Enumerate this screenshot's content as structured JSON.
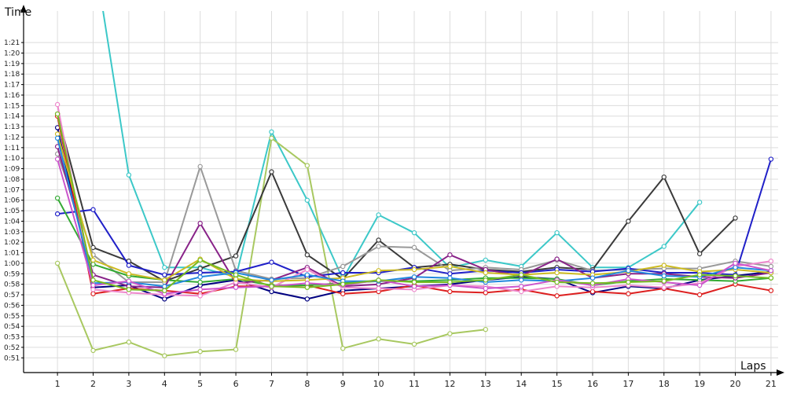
{
  "chart_data": {
    "type": "line",
    "title": "",
    "xlabel": "Laps",
    "ylabel": "Time",
    "grid": true,
    "x": [
      1,
      2,
      3,
      4,
      5,
      6,
      7,
      8,
      9,
      10,
      11,
      12,
      13,
      14,
      15,
      16,
      17,
      18,
      19,
      20,
      21
    ],
    "xlim": [
      0.05,
      21.2
    ],
    "ylim": [
      49.6,
      84
    ],
    "y_ticks": [
      51,
      52,
      53,
      54,
      55,
      56,
      57,
      58,
      59,
      60,
      61,
      62,
      63,
      64,
      65,
      66,
      67,
      68,
      69,
      70,
      71,
      72,
      73,
      74,
      75,
      76,
      77,
      78,
      79,
      80,
      81
    ],
    "y_tick_labels": [
      "0:51",
      "0:52",
      "0:53",
      "0:54",
      "0:55",
      "0:56",
      "0:57",
      "0:58",
      "0:59",
      "1:00",
      "1:01",
      "1:02",
      "1:03",
      "1:04",
      "1:05",
      "1:06",
      "1:07",
      "1:08",
      "1:09",
      "1:10",
      "1:11",
      "1:12",
      "1:13",
      "1:14",
      "1:15",
      "1:16",
      "1:17",
      "1:18",
      "1:19",
      "1:20",
      "1:21"
    ],
    "x_tick_labels": [
      "1",
      "2",
      "3",
      "4",
      "5",
      "6",
      "7",
      "8",
      "9",
      "10",
      "11",
      "12",
      "13",
      "14",
      "15",
      "16",
      "17",
      "18",
      "19",
      "20",
      "21"
    ],
    "series": [
      {
        "color": "#3cc8c8",
        "values": [
          null,
          90,
          68.4,
          59.6,
          59.6,
          58.7,
          72.5,
          66,
          58.5,
          64.6,
          62.9,
          59.6,
          60.3,
          59.7,
          62.9,
          59.6,
          59.6,
          61.6,
          65.8,
          null,
          null
        ]
      },
      {
        "color": "#a8c860",
        "values": [
          60,
          51.7,
          52.5,
          51.2,
          51.6,
          51.8,
          71.9,
          69.3,
          51.9,
          52.8,
          52.3,
          53.3,
          53.7,
          null,
          null,
          null,
          null,
          null,
          null,
          null,
          null
        ]
      },
      {
        "color": "#3a3a3a",
        "values": [
          74.2,
          61.5,
          60.2,
          58.3,
          59.5,
          60.7,
          68.7,
          60.8,
          58.5,
          62.2,
          59.6,
          59.9,
          59.4,
          59.2,
          59.6,
          59.4,
          64,
          68.2,
          60.9,
          64.3,
          null
        ]
      },
      {
        "color": "#999999",
        "values": [
          70.4,
          60.8,
          58.2,
          58.2,
          69.2,
          59.3,
          58.5,
          58.6,
          59.7,
          61.6,
          61.5,
          59.3,
          59.6,
          59.4,
          60.3,
          59.3,
          59.4,
          59.5,
          59.5,
          60.2,
          59.7
        ]
      },
      {
        "color": "#2020c8",
        "values": [
          64.7,
          65.1,
          59.8,
          58.9,
          59.1,
          59.2,
          60.1,
          58.7,
          59.1,
          59.1,
          59.6,
          59.0,
          59.3,
          59.1,
          59.4,
          59.2,
          59.5,
          59.1,
          59.1,
          58.9,
          69.9
        ]
      },
      {
        "color": "#000080",
        "values": [
          72.9,
          57.7,
          57.9,
          56.6,
          57.9,
          58.4,
          57.3,
          56.6,
          57.4,
          57.6,
          57.8,
          58,
          58.4,
          58.7,
          58.5,
          57.2,
          57.8,
          57.6,
          58.4,
          58.8,
          59.2
        ]
      },
      {
        "color": "#dd2020",
        "values": [
          74,
          57.1,
          57.6,
          57.4,
          57.1,
          57.8,
          57.8,
          57.9,
          57.1,
          57.3,
          57.9,
          57.3,
          57.2,
          57.5,
          56.9,
          57.3,
          57.1,
          57.6,
          57,
          58,
          57.4
        ]
      },
      {
        "color": "#33aa33",
        "values": [
          66.2,
          59.9,
          58.8,
          58.4,
          58.2,
          58.5,
          57.9,
          57.9,
          58.1,
          58.3,
          58.3,
          58.4,
          58.6,
          58.6,
          58.5,
          57.9,
          58.3,
          58.5,
          58.4,
          58.3,
          58.6
        ]
      },
      {
        "color": "#882288",
        "values": [
          71.1,
          58.9,
          57.8,
          57.7,
          63.8,
          58.1,
          58.4,
          59.6,
          57.8,
          58,
          58.6,
          60.8,
          59.4,
          58.8,
          60.4,
          58.6,
          59,
          59,
          58.7,
          58.6,
          59.1
        ]
      },
      {
        "color": "#ee88cc",
        "values": [
          75.1,
          57.5,
          57.2,
          57,
          56.9,
          58.2,
          57.7,
          59.4,
          57.7,
          57.6,
          57.5,
          57.9,
          57.8,
          57.3,
          57.8,
          57.7,
          57.9,
          57.7,
          58.1,
          59.7,
          60.2
        ]
      },
      {
        "color": "#ccbb22",
        "values": [
          72.3,
          60.3,
          59,
          58.4,
          60.4,
          58.5,
          58.3,
          58.4,
          58.6,
          59.3,
          59.4,
          59.7,
          59.1,
          58.9,
          59.1,
          58.9,
          59.2,
          59.8,
          59.2,
          59.4,
          59.1
        ]
      },
      {
        "color": "#2288dd",
        "values": [
          71.9,
          58.1,
          58.2,
          57.8,
          58.7,
          59.1,
          58.4,
          58.9,
          58.3,
          58.3,
          58.7,
          58.6,
          58.2,
          58.4,
          58.3,
          58.6,
          59.3,
          58.8,
          58.7,
          59.6,
          59.3
        ]
      },
      {
        "color": "#cc55cc",
        "values": [
          69.9,
          57.9,
          58.3,
          57.1,
          57.5,
          57.7,
          57.8,
          58.1,
          57.9,
          58.4,
          57.8,
          57.9,
          57.6,
          57.8,
          58.4,
          57.9,
          58.5,
          58.2,
          57.9,
          60,
          59.3
        ]
      },
      {
        "color": "#77bb22",
        "values": [
          74.2,
          58.4,
          57.5,
          57.4,
          60.3,
          58.9,
          57.8,
          57.7,
          58,
          58.4,
          58.2,
          58.2,
          58.4,
          58.9,
          58.2,
          58.1,
          58.2,
          58.3,
          58.9,
          58.8,
          58.6
        ]
      }
    ]
  }
}
